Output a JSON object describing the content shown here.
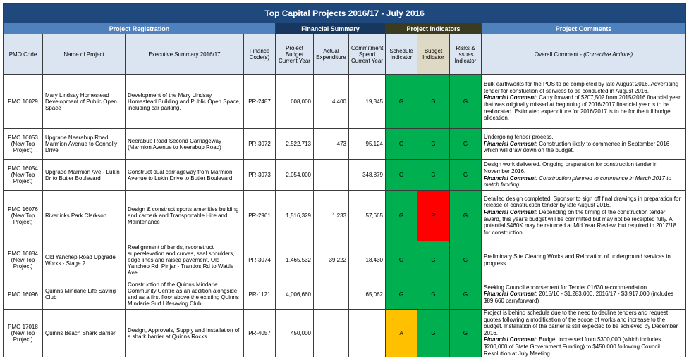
{
  "title": "Top Capital Projects 2016/17 - July 2016",
  "sections": {
    "registration": "Project Registration",
    "financial": "Financial Summary",
    "indicators": "Project Indicators",
    "comments": "Project Comments"
  },
  "headers": {
    "pmo_code": "PMO Code",
    "name": "Name of Project",
    "summary": "Executive Summary 2016/17",
    "finance_code": "Finance Code(s)",
    "budget": "Project Budget Current Year",
    "actual": "Actual Expenditure",
    "commitment": "Commitment Spend Current Year",
    "schedule": "Schedule Indicator",
    "budget_ind": "Budget Indicator",
    "risks": "Risks & Issues Indicator",
    "overall": "Overall Comment - ",
    "overall_suffix": "(Corrective Actions)"
  },
  "colors": {
    "title_bg": "#1f497d",
    "green": "#00b050",
    "red": "#ff0000",
    "amber": "#ffc000",
    "header_bg": "#dbe5f1"
  },
  "rows": [
    {
      "pmo": "PMO 16029",
      "name": "Mary Lindsay Homestead Development of Public Open Space",
      "summary": "Development of the Mary Lindsay Homestead Building and Public Open Space, including car parking.",
      "finance_code": "PR-2487",
      "budget": "608,000",
      "actual": "4,400",
      "commitment": "19,345",
      "schedule": "G",
      "budget_ind": "G",
      "risks": "G",
      "comment_pre": "Bulk earthworks for the POS to be completed by late August 2016.  Advertising tender for constuction of services to be conducted in August 2016.",
      "fc_label": "Financial Comment",
      "fc_text": ":  Carry forward of $207,502 from 2015/2016 financial year that was originally missed at beginning of 2016/2017 financial year is to be reallocated. Estimated expenditure for 2016/2017 is to be for the full budget allocation.",
      "fc_italic": false
    },
    {
      "pmo": "PMO 16053 (New Top Project)",
      "name": "Upgrade Neerabup Road Marmion Avenue to Connolly Drive",
      "summary": "Neerabup Road Second Carriageway (Marmion Avenue to Neerabup Road)",
      "finance_code": "PR-3072",
      "budget": "2,522,713",
      "actual": "473",
      "commitment": "95,124",
      "schedule": "G",
      "budget_ind": "G",
      "risks": "G",
      "comment_pre": "Undergoing tender process.",
      "fc_label": "Financial Comment",
      "fc_text": ": Construction likely to commence in September 2016 which will draw down on the budget.",
      "fc_italic": false
    },
    {
      "pmo": "PMO 16054 (New Top Project)",
      "name": "Upgrade Marmion Ave - Lukin Dr to Butler Boulevard",
      "summary": "Construct dual carriageway from Marmion Avenue to Lukin Drive to Butler Boulevard",
      "finance_code": "PR-3073",
      "budget": "2,054,000",
      "actual": "",
      "commitment": "348,879",
      "schedule": "G",
      "budget_ind": "G",
      "risks": "G",
      "comment_pre": "Design work delivered. Ongoing preparation for construction tender in November 2016.",
      "fc_label": "Financial Comment",
      "fc_text": ":  Construction planned to commence in March 2017 to match funding.",
      "fc_italic": true
    },
    {
      "pmo": "PMO 16076 (New Top Project)",
      "name": "Riverlinks Park Clarkson",
      "summary": " Design & construct sports amenities building and carpark and Transportable Hire and Maintenance",
      "finance_code": "PR-2961",
      "budget": "1,516,329",
      "actual": "1,233",
      "commitment": "57,665",
      "schedule": "G",
      "budget_ind": "R",
      "risks": "G",
      "comment_pre": "Detailed design completed. Sponsor to sign off final drawings in preparation for release of construction tender by late August 2016.",
      "fc_label": "Financial Comment",
      "fc_text": ":   Depending on the timing of the construction tender award, this year's budget will be committed but may not be receipted fully. A potential $460K may be returned at Mid Year Review, but required in 2017/18 for construction.",
      "fc_italic": false
    },
    {
      "pmo": "PMO 16084 (New Top Project)",
      "name": "Old Yanchep Road Upgrade Works - Stage 2",
      "summary": "Realignment of bends, reconstruct superelevation and curves, seal shoulders, edge lines and raised pavement. Old Yanchep Rd, Pinjar - Trandos Rd to Wattle Ave",
      "finance_code": "PR-3074",
      "budget": "1,465,532",
      "actual": "39,222",
      "commitment": "18,430",
      "schedule": "G",
      "budget_ind": "G",
      "risks": "G",
      "comment_pre": "Preliminary Site Clearing Works  and Relocation of underground services in progress.",
      "fc_label": "",
      "fc_text": "",
      "fc_italic": false
    },
    {
      "pmo": "PMO 16096",
      "name": "Quinns Mindarie Life Saving Club",
      "summary": "Construction of the Quinns Mindarie Community Centre as an addition alongside and as a first floor above the existing Quinns Mindarie Surf Lifesaving Club",
      "finance_code": "PR-1121",
      "budget": "4,006,660",
      "actual": "",
      "commitment": "65,062",
      "schedule": "G",
      "budget_ind": "G",
      "risks": "G",
      "comment_pre": "Seeking Council endorsement for Tender 01630 recommendation.",
      "fc_label": "Financial Comment",
      "fc_text": ":  2015/16 - $1,283,000.  2016/17 - $3,917,000 (includes $89,660 carryforward)",
      "fc_italic": false
    },
    {
      "pmo": "PMO 17018 (New Top Project)",
      "name": "Quinns Beach Shark Barrier",
      "summary": "Design, Approvals, Supply and Installation of a shark barrier at Quinns Rocks",
      "finance_code": "PR-4057",
      "budget": "450,000",
      "actual": "",
      "commitment": "",
      "schedule": "A",
      "budget_ind": "G",
      "risks": "G",
      "comment_pre": "Project is behind schedule due to the need to decline tenders and request quotes following a modification of the scope of works and increase to the budget. Installation of the barrier is still expected to be achieved by December 2016.",
      "fc_label": "Financial Comment",
      "fc_text": ":   Budget increased from $300,000 (which includes $200,000 of State Government Funding) to $450,000 following Council Resolution at July Meeting.",
      "fc_italic": false
    }
  ]
}
